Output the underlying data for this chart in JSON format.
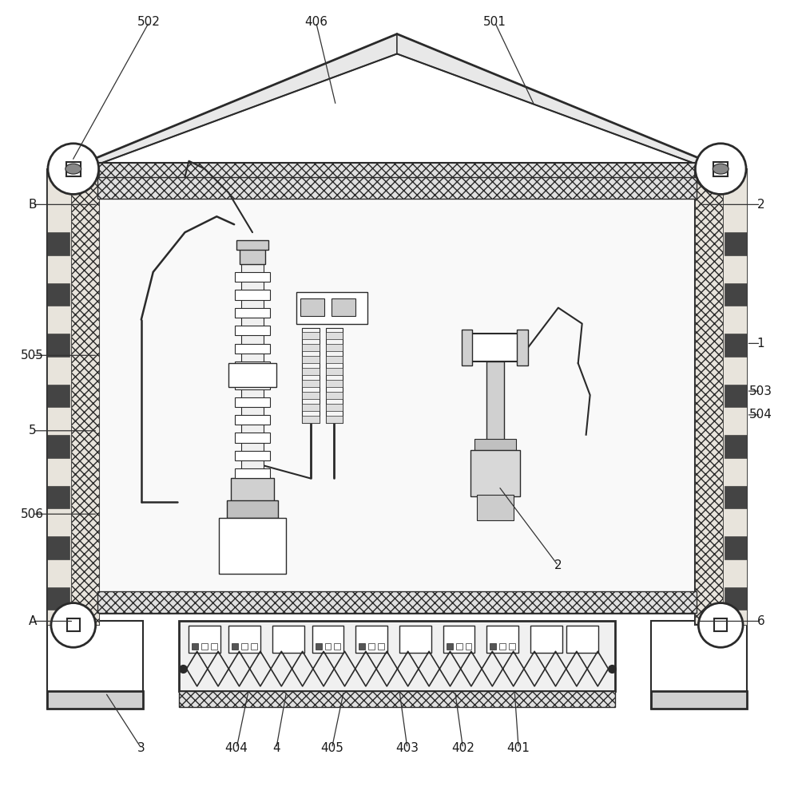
{
  "bg_color": "#ffffff",
  "lc": "#2a2a2a",
  "gray1": "#f0f0f0",
  "gray2": "#d8d8d8",
  "gray3": "#b0b0b0",
  "gray4": "#888888",
  "gray5": "#555555",
  "hatch_gray": "#cccccc"
}
